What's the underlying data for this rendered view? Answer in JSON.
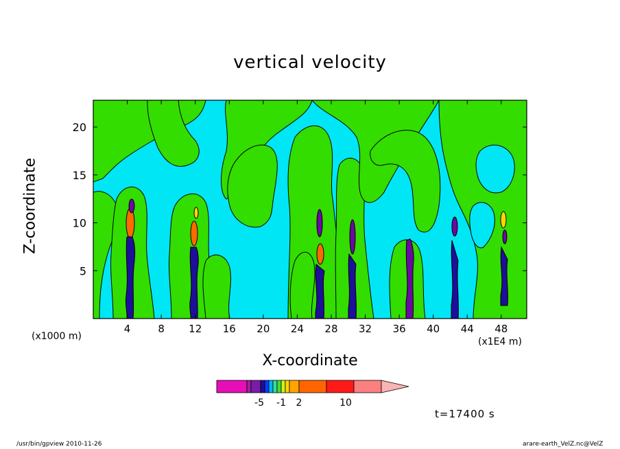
{
  "chart_data": {
    "type": "contour",
    "title": "vertical velocity",
    "xlabel": "X-coordinate",
    "ylabel": "Z-coordinate",
    "x_unit_left": "(x1000 m)",
    "x_unit_right": "(x1E4 m)",
    "x_ticks": [
      4,
      8,
      12,
      16,
      20,
      24,
      28,
      32,
      36,
      40,
      44,
      48
    ],
    "y_ticks": [
      5,
      10,
      15,
      20
    ],
    "xlim": [
      0,
      51
    ],
    "ylim": [
      0,
      22.8
    ],
    "colorbar": {
      "labels": [
        "-5",
        "-1",
        "2",
        "10"
      ],
      "label_values": [
        -5,
        -1,
        2,
        10
      ],
      "colors": [
        "#e60fb5",
        "#a020a0",
        "#7a1ca8",
        "#1d0f9a",
        "#0a3cff",
        "#00b4ff",
        "#2ee0a0",
        "#40e030",
        "#d0f020",
        "#ffd700",
        "#ffa500",
        "#ff6600",
        "#ff1a1a",
        "#fa8080",
        "#f9b4b4"
      ]
    },
    "field_colors": {
      "background": "#00e6f5",
      "positive": "#33dd00",
      "updraft": "#ff6a00",
      "downdraft": "#6a0aa0",
      "contour": "#000000"
    }
  },
  "time_label": "t=17400 s",
  "footer": {
    "left": "/usr/bin/gpview   2010-11-26",
    "right": "arare-earth_VelZ.nc@VelZ"
  }
}
